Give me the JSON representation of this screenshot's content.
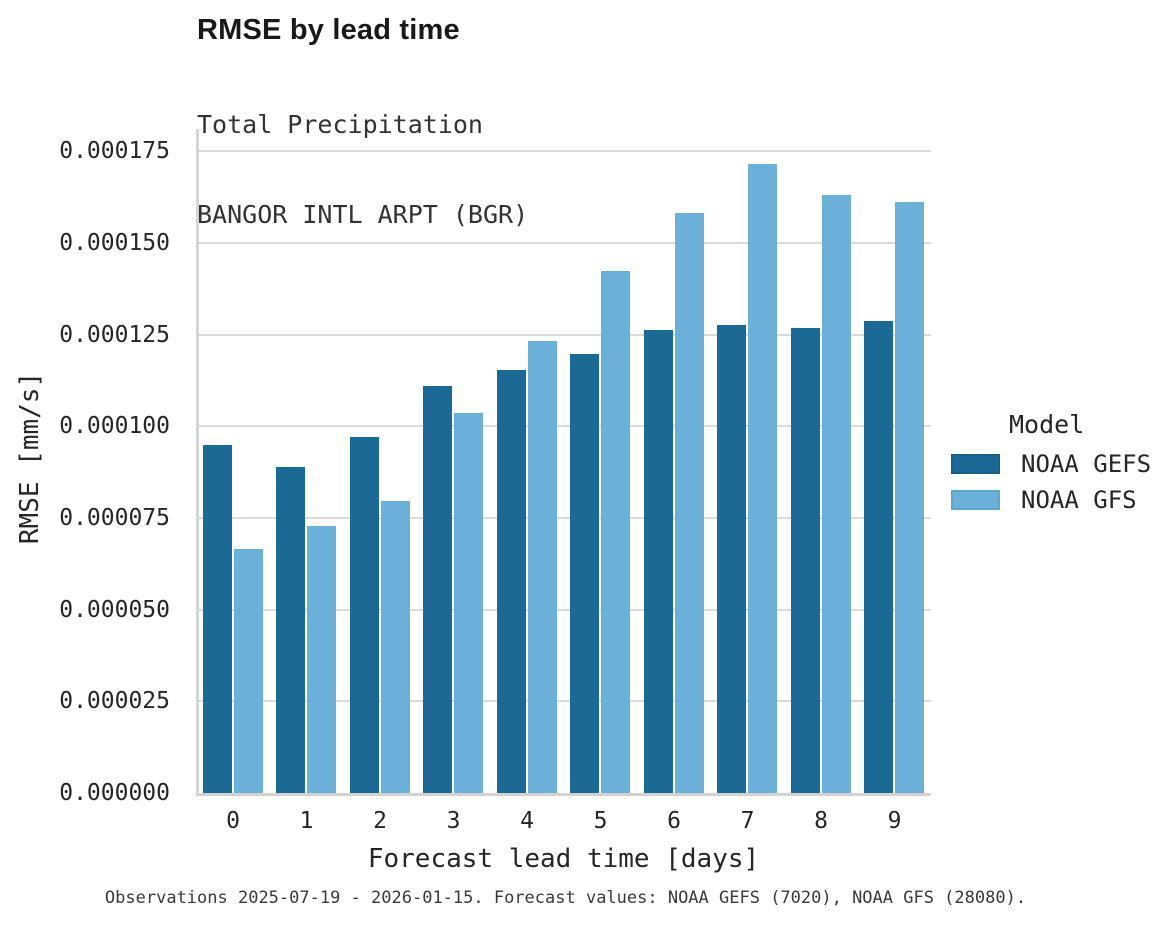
{
  "chart_data": {
    "type": "bar",
    "title": "RMSE by lead time",
    "subtitle_line1": "Total Precipitation",
    "subtitle_line2": "BANGOR INTL ARPT (BGR)",
    "xlabel": "Forecast lead time [days]",
    "ylabel": "RMSE [mm/s]",
    "legend_title": "Model",
    "legend_position": "right-center",
    "grid": "horizontal",
    "categories": [
      "0",
      "1",
      "2",
      "3",
      "4",
      "5",
      "6",
      "7",
      "8",
      "9"
    ],
    "series": [
      {
        "name": "NOAA GEFS",
        "color": "#1b6a96",
        "border_color": "#15618b",
        "values": [
          9.5e-05,
          8.9e-05,
          9.71e-05,
          0.000111,
          0.0001152,
          0.0001197,
          0.0001261,
          0.0001277,
          0.0001267,
          0.0001286
        ]
      },
      {
        "name": "NOAA GFS",
        "color": "#6bb0d9",
        "border_color": "#5ea6d2",
        "values": [
          6.65e-05,
          7.29e-05,
          7.96e-05,
          0.0001037,
          0.0001233,
          0.0001424,
          0.000158,
          0.0001716,
          0.0001631,
          0.0001612
        ]
      }
    ],
    "ylim": [
      0,
      0.000175
    ],
    "ytick_step": 2.5e-05,
    "ytick_labels": [
      "0.000000",
      "0.000025",
      "0.000050",
      "0.000075",
      "0.000100",
      "0.000125",
      "0.000150",
      "0.000175"
    ]
  },
  "caption": "Observations 2025-07-19 - 2026-01-15. Forecast values: NOAA GEFS (7020), NOAA GFS (28080)."
}
